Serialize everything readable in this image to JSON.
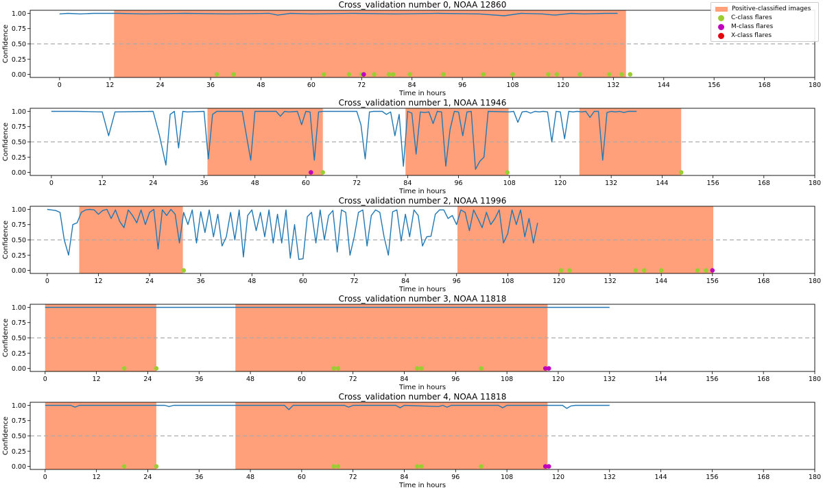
{
  "colors": {
    "line": "#1f77b4",
    "shade": "#ffa07a",
    "c_flare": "#9acd32",
    "m_flare": "#bf00bf",
    "x_flare": "#e8000b",
    "threshold": "#aaaaaa"
  },
  "legend": {
    "positive": "Positive-classified images",
    "c_class": "C-class flares",
    "m_class": "M-class flares",
    "x_class": "X-class flares"
  },
  "chart_data": [
    {
      "type": "line",
      "title": "Cross_validation number 0, NOAA 12860",
      "xlabel": "Time in hours",
      "ylabel": "Confidence",
      "xlim": [
        -7,
        180
      ],
      "ylim": [
        -0.05,
        1.05
      ],
      "xticks": [
        0,
        12,
        24,
        36,
        48,
        60,
        72,
        84,
        96,
        108,
        120,
        132,
        144,
        156,
        168,
        180
      ],
      "yticks": [
        "0.00",
        "0.25",
        "0.50",
        "0.75",
        "1.00"
      ],
      "threshold": 0.5,
      "positive_spans": [
        [
          13,
          135
        ]
      ],
      "confidence_x": [
        0,
        2,
        5,
        8,
        11,
        14,
        20,
        30,
        40,
        50,
        52,
        55,
        60,
        70,
        80,
        90,
        100,
        106,
        110,
        115,
        118,
        122,
        125,
        130,
        133
      ],
      "confidence_y": [
        0.99,
        1.0,
        0.99,
        1.0,
        1.0,
        1.0,
        0.99,
        1.0,
        0.99,
        1.0,
        0.97,
        1.0,
        0.99,
        1.0,
        0.99,
        1.0,
        0.99,
        0.96,
        1.0,
        0.99,
        0.97,
        1.0,
        0.99,
        1.0,
        1.0
      ],
      "c_flares": [
        37.5,
        41.5,
        63,
        69,
        72,
        75,
        78.5,
        79.5,
        83.5,
        91.5,
        101,
        108,
        116.5,
        118.5,
        124,
        131,
        134,
        136
      ],
      "m_flares": [
        72.5
      ],
      "x_flares": []
    },
    {
      "type": "line",
      "title": "Cross_validation number 1, NOAA 11946",
      "xlabel": "Time in hours",
      "ylabel": "Confidence",
      "xlim": [
        -5,
        180
      ],
      "ylim": [
        -0.05,
        1.05
      ],
      "xticks": [
        0,
        12,
        24,
        36,
        48,
        60,
        72,
        84,
        96,
        108,
        120,
        132,
        144,
        156,
        168,
        180
      ],
      "yticks": [
        "0.00",
        "0.25",
        "0.50",
        "0.75",
        "1.00"
      ],
      "threshold": 0.5,
      "positive_spans": [
        [
          36.8,
          64
        ],
        [
          83.5,
          107.8
        ],
        [
          124.5,
          148.5
        ]
      ],
      "confidence_x": [
        0,
        6,
        12,
        13.5,
        15,
        24,
        25.5,
        27,
        28,
        29,
        30,
        31,
        32,
        36,
        37,
        38,
        39,
        45,
        46,
        47,
        48,
        53,
        54,
        55,
        56,
        58,
        59,
        60,
        61,
        62,
        63,
        64,
        72,
        73,
        74,
        75,
        76,
        78,
        79,
        80,
        81,
        82,
        83,
        84,
        85,
        86,
        87,
        88,
        89,
        90,
        91,
        92,
        93,
        94,
        95,
        96,
        97,
        98,
        99,
        100,
        101,
        102,
        103,
        108,
        109,
        110,
        111,
        112,
        113,
        114,
        115,
        116,
        117,
        118,
        119,
        120,
        121,
        122,
        123,
        124,
        125,
        126,
        127,
        128,
        129,
        130,
        131,
        132,
        133,
        134,
        135,
        136,
        137,
        138
      ],
      "confidence_y": [
        1.0,
        1.0,
        0.99,
        0.6,
        0.99,
        1.0,
        0.6,
        0.12,
        0.95,
        1.0,
        0.4,
        1.0,
        0.99,
        1.0,
        0.22,
        0.95,
        1.0,
        1.0,
        0.6,
        0.2,
        1.0,
        1.0,
        0.92,
        1.0,
        0.99,
        1.0,
        0.78,
        1.0,
        0.99,
        0.2,
        0.99,
        1.0,
        1.0,
        0.78,
        0.22,
        0.99,
        1.0,
        1.0,
        0.95,
        0.99,
        0.6,
        0.95,
        0.1,
        1.0,
        0.97,
        0.3,
        0.99,
        0.98,
        0.99,
        0.8,
        1.0,
        0.99,
        0.1,
        0.7,
        1.0,
        0.99,
        0.6,
        0.99,
        1.0,
        0.05,
        0.18,
        0.25,
        1.0,
        0.99,
        1.0,
        0.82,
        0.99,
        1.0,
        0.97,
        1.0,
        0.99,
        1.0,
        0.99,
        0.5,
        1.0,
        0.99,
        0.55,
        1.0,
        0.99,
        1.0,
        0.99,
        1.0,
        0.9,
        1.0,
        1.0,
        0.2,
        0.98,
        1.0,
        0.99,
        1.0,
        0.98,
        1.0,
        1.0,
        1.0
      ],
      "c_flares": [
        64,
        107.5,
        148.5
      ],
      "m_flares": [
        61.2
      ],
      "x_flares": []
    },
    {
      "type": "line",
      "title": "Cross_validation number 2, NOAA 11996",
      "xlabel": "Time in hours",
      "ylabel": "Confidence",
      "xlim": [
        -4,
        180
      ],
      "ylim": [
        -0.05,
        1.05
      ],
      "xticks": [
        0,
        12,
        24,
        36,
        48,
        60,
        72,
        84,
        96,
        108,
        120,
        132,
        144,
        156,
        168,
        180
      ],
      "yticks": [
        "0.00",
        "0.25",
        "0.50",
        "0.75",
        "1.00"
      ],
      "threshold": 0.5,
      "positive_spans": [
        [
          7.5,
          31.8
        ],
        [
          96.2,
          156.2
        ]
      ],
      "confidence_x": [
        0,
        1,
        2,
        3,
        4,
        5,
        6,
        7,
        8,
        9,
        10,
        11,
        12,
        13,
        14,
        15,
        16,
        17,
        18,
        19,
        20,
        21,
        22,
        23,
        24,
        25,
        26,
        27,
        28,
        29,
        30,
        31,
        32,
        33,
        34,
        35,
        36,
        37,
        38,
        39,
        40,
        41,
        42,
        43,
        44,
        45,
        46,
        47,
        48,
        49,
        50,
        51,
        52,
        53,
        54,
        55,
        56,
        57,
        58,
        59,
        60,
        61,
        62,
        63,
        64,
        65,
        66,
        67,
        68,
        69,
        70,
        71,
        72,
        73,
        74,
        75,
        76,
        77,
        78,
        79,
        80,
        81,
        82,
        83,
        84,
        85,
        86,
        87,
        88,
        89,
        90,
        91,
        92,
        93,
        94,
        95,
        96,
        97,
        98,
        99,
        100,
        101,
        102,
        103,
        104,
        105,
        106,
        107,
        108,
        109,
        110,
        111,
        112,
        113,
        114,
        115
      ],
      "confidence_y": [
        1.0,
        0.99,
        0.98,
        0.95,
        0.5,
        0.25,
        0.75,
        0.78,
        0.95,
        0.99,
        1.0,
        0.99,
        0.92,
        0.98,
        1.0,
        0.85,
        0.99,
        0.8,
        0.7,
        0.99,
        0.9,
        0.78,
        0.99,
        0.75,
        0.95,
        1.0,
        0.35,
        0.99,
        0.9,
        1.0,
        0.92,
        0.45,
        0.95,
        0.75,
        0.99,
        0.45,
        0.96,
        0.62,
        0.99,
        0.55,
        0.92,
        0.4,
        0.55,
        0.95,
        0.5,
        0.99,
        0.22,
        0.9,
        0.99,
        0.65,
        0.95,
        0.55,
        0.99,
        0.45,
        0.92,
        0.45,
        0.99,
        0.2,
        0.75,
        0.18,
        0.19,
        0.88,
        0.95,
        0.45,
        0.99,
        0.5,
        0.9,
        0.98,
        0.3,
        0.99,
        0.95,
        0.25,
        0.55,
        0.95,
        0.99,
        0.4,
        0.9,
        0.99,
        0.95,
        0.55,
        0.25,
        0.96,
        0.99,
        0.48,
        0.92,
        0.55,
        0.99,
        0.9,
        0.4,
        0.55,
        0.56,
        0.92,
        0.99,
        0.99,
        0.85,
        0.9,
        0.75,
        0.99,
        0.95,
        0.65,
        0.99,
        0.85,
        0.7,
        0.95,
        0.75,
        0.85,
        0.99,
        0.45,
        0.6,
        0.99,
        0.75,
        0.99,
        0.55,
        0.85,
        0.45,
        0.78
      ],
      "c_flares": [
        32,
        120.5,
        122.5,
        138,
        140,
        144,
        152.5,
        154.5
      ],
      "m_flares": [
        156
      ],
      "x_flares": []
    },
    {
      "type": "line",
      "title": "Cross_validation number 3, NOAA 11818",
      "xlabel": "Time in hours",
      "ylabel": "Confidence",
      "xlim": [
        -3.5,
        180
      ],
      "ylim": [
        -0.05,
        1.05
      ],
      "xticks": [
        0,
        12,
        24,
        36,
        48,
        60,
        72,
        84,
        96,
        108,
        120,
        132,
        144,
        156,
        168,
        180
      ],
      "yticks": [
        "0.00",
        "0.25",
        "0.50",
        "0.75",
        "1.00"
      ],
      "threshold": 0.5,
      "positive_spans": [
        [
          0,
          26
        ],
        [
          44.5,
          117.5
        ]
      ],
      "confidence_x": [
        0,
        20,
        40,
        60,
        80,
        100,
        120,
        132
      ],
      "confidence_y": [
        1.0,
        1.0,
        1.0,
        1.0,
        1.0,
        1.0,
        1.0,
        1.0
      ],
      "c_flares": [
        18.5,
        26,
        67.5,
        68.5,
        87,
        88,
        102
      ],
      "m_flares": [
        117,
        117.8
      ],
      "x_flares": []
    },
    {
      "type": "line",
      "title": "Cross_validation number 4, NOAA 11818",
      "xlabel": "Time in hours",
      "ylabel": "Confidence",
      "xlim": [
        -3.5,
        180
      ],
      "ylim": [
        -0.05,
        1.05
      ],
      "xticks": [
        0,
        12,
        24,
        36,
        48,
        60,
        72,
        84,
        96,
        108,
        120,
        132,
        144,
        156,
        168,
        180
      ],
      "yticks": [
        "0.00",
        "0.25",
        "0.50",
        "0.75",
        "1.00"
      ],
      "threshold": 0.5,
      "positive_spans": [
        [
          0,
          26
        ],
        [
          44.5,
          117.5
        ]
      ],
      "confidence_x": [
        0,
        6,
        7,
        8,
        20,
        28,
        29,
        30,
        56,
        57,
        58,
        70,
        71,
        72,
        82,
        83,
        84,
        92,
        93,
        94,
        95,
        106,
        107,
        108,
        121,
        122,
        123,
        124,
        128,
        132
      ],
      "confidence_y": [
        1.0,
        1.0,
        0.97,
        1.0,
        1.0,
        1.0,
        0.98,
        1.0,
        1.0,
        0.93,
        1.0,
        1.0,
        0.97,
        1.0,
        1.0,
        0.96,
        1.0,
        0.98,
        1.0,
        0.97,
        1.0,
        1.0,
        0.96,
        1.0,
        1.0,
        0.95,
        0.99,
        1.0,
        1.0,
        1.0
      ],
      "c_flares": [
        18.5,
        26,
        67.5,
        68.5,
        87,
        88,
        102
      ],
      "m_flares": [
        117,
        117.8
      ],
      "x_flares": []
    }
  ]
}
